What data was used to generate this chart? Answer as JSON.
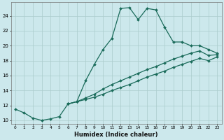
{
  "xlabel": "Humidex (Indice chaleur)",
  "bg_color": "#cce8ec",
  "grid_color": "#aacccc",
  "line_color": "#1a6b5a",
  "xlim": [
    -0.5,
    23.5
  ],
  "ylim": [
    9.5,
    25.8
  ],
  "xticks": [
    0,
    1,
    2,
    3,
    4,
    5,
    6,
    7,
    8,
    9,
    10,
    11,
    12,
    13,
    14,
    15,
    16,
    17,
    18,
    19,
    20,
    21,
    22,
    23
  ],
  "yticks": [
    10,
    12,
    14,
    16,
    18,
    20,
    22,
    24
  ],
  "line1_x": [
    0,
    1,
    2,
    3,
    4,
    5,
    6,
    7,
    8,
    9,
    10,
    11,
    12,
    13,
    14,
    15,
    16,
    17,
    18,
    19,
    20,
    21,
    22,
    23
  ],
  "line1_y": [
    11.5,
    11.0,
    10.3,
    10.0,
    10.2,
    10.5,
    12.2,
    12.5,
    15.3,
    17.5,
    19.5,
    21.0,
    25.0,
    25.1,
    23.5,
    25.0,
    24.8,
    22.5,
    20.5,
    20.5,
    20.0,
    20.0,
    19.5,
    19.0
  ],
  "line2_x": [
    6,
    7,
    8,
    9,
    10,
    11,
    12,
    13,
    14,
    15,
    16,
    17,
    18,
    19,
    20,
    21,
    22,
    23
  ],
  "line2_y": [
    12.2,
    12.5,
    12.8,
    13.1,
    13.5,
    14.0,
    14.4,
    14.8,
    15.3,
    15.8,
    16.2,
    16.6,
    17.1,
    17.5,
    17.9,
    18.3,
    18.0,
    18.5
  ],
  "line3_x": [
    6,
    7,
    8,
    9,
    10,
    11,
    12,
    13,
    14,
    15,
    16,
    17,
    18,
    19,
    20,
    21,
    22,
    23
  ],
  "line3_y": [
    12.2,
    12.5,
    13.0,
    13.5,
    14.2,
    14.8,
    15.3,
    15.8,
    16.3,
    16.8,
    17.2,
    17.7,
    18.2,
    18.6,
    19.0,
    19.3,
    18.7,
    18.8
  ]
}
